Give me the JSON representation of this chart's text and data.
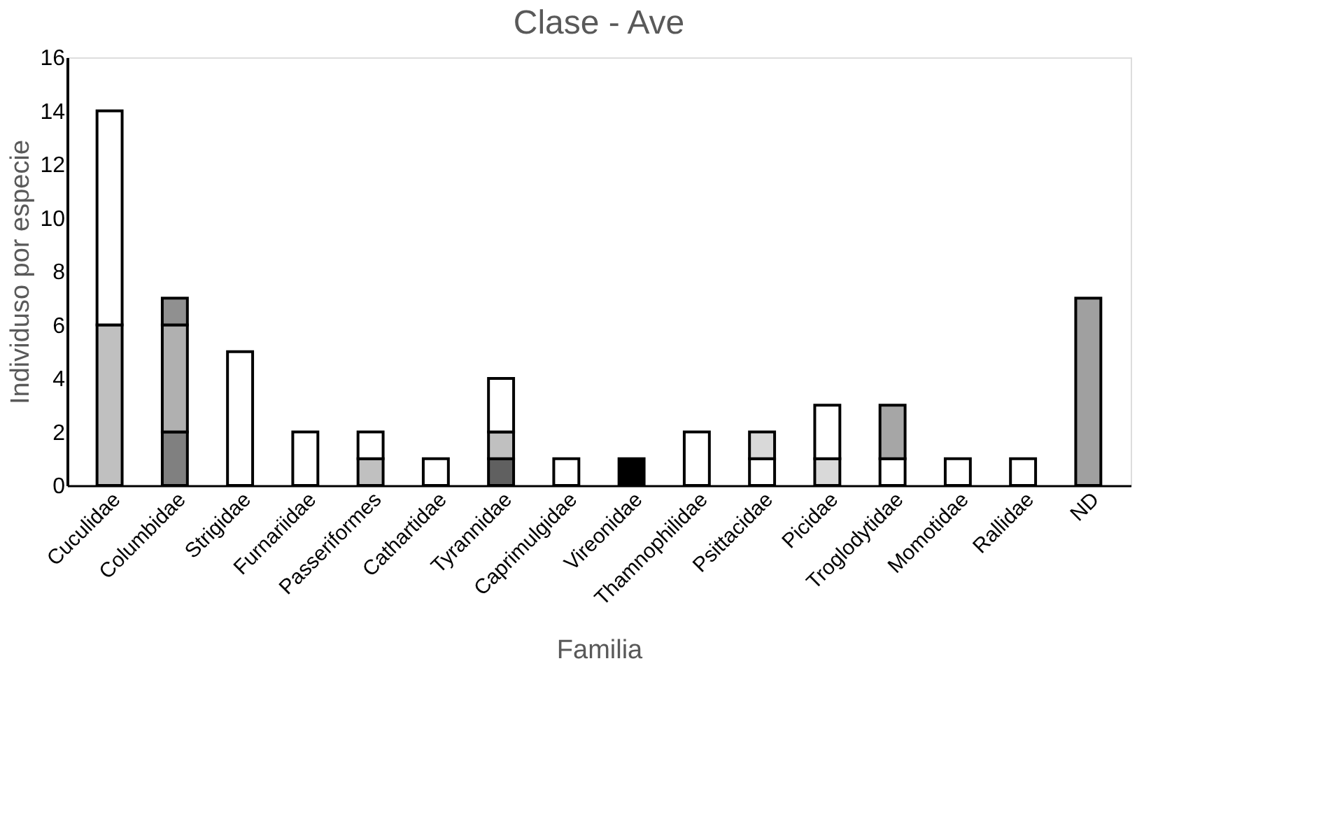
{
  "chart_data": {
    "type": "bar",
    "stacked": true,
    "title": "Clase - Ave",
    "xlabel": "Familia",
    "ylabel": "Individuso por especie",
    "categories": [
      "Cuculidae",
      "Columbidae",
      "Strigidae",
      "Furnariidae",
      "Passeriformes",
      "Cathartidae",
      "Tyrannidae",
      "Caprimulgidae",
      "Vireonidae",
      "Thamnophilidae",
      "Psittacidae",
      "Picidae",
      "Troglodytidae",
      "Momotidae",
      "Rallidae",
      "ND"
    ],
    "series": [
      {
        "values": [
          6,
          2,
          5,
          2,
          1,
          1,
          1,
          1,
          1,
          2,
          1,
          1,
          1,
          1,
          1,
          7
        ],
        "colors": [
          "#c0c0c0",
          "#808080",
          "#ffffff",
          "#ffffff",
          "#c0c0c0",
          "#ffffff",
          "#606060",
          "#ffffff",
          "#000000",
          "#ffffff",
          "#ffffff",
          "#d9d9d9",
          "#ffffff",
          "#ffffff",
          "#ffffff",
          "#a0a0a0"
        ]
      },
      {
        "values": [
          8,
          4,
          null,
          null,
          1,
          null,
          1,
          null,
          null,
          null,
          1,
          2,
          2,
          null,
          null,
          null
        ],
        "colors": [
          "#ffffff",
          "#b0b0b0",
          null,
          null,
          "#ffffff",
          null,
          "#c0c0c0",
          null,
          null,
          null,
          "#d9d9d9",
          "#ffffff",
          "#a6a6a6",
          null,
          null,
          null
        ]
      },
      {
        "values": [
          null,
          1,
          null,
          null,
          null,
          null,
          2,
          null,
          null,
          null,
          null,
          null,
          null,
          null,
          null,
          null
        ],
        "colors": [
          null,
          "#909090",
          null,
          null,
          null,
          null,
          "#ffffff",
          null,
          null,
          null,
          null,
          null,
          null,
          null,
          null,
          null
        ]
      }
    ],
    "ylim": [
      0,
      16
    ],
    "yticks": [
      0,
      2,
      4,
      6,
      8,
      10,
      12,
      14,
      16
    ],
    "grid": false
  }
}
